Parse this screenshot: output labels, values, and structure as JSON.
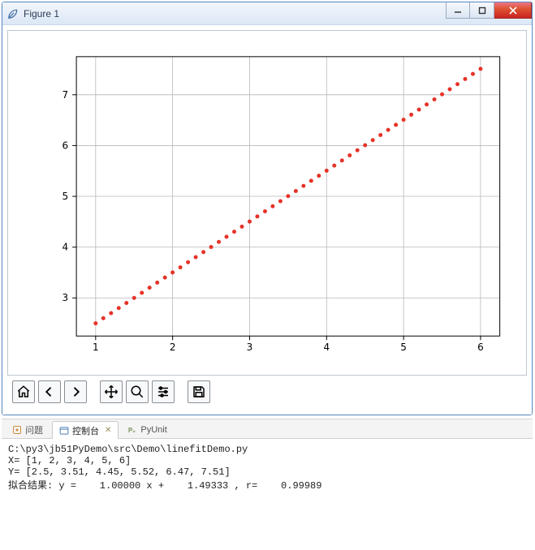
{
  "window": {
    "title": "Figure 1"
  },
  "chart": {
    "type": "scatter-line",
    "xlim": [
      0.75,
      6.25
    ],
    "ylim": [
      2.25,
      7.75
    ],
    "xticks": [
      1,
      2,
      3,
      4,
      5,
      6
    ],
    "yticks": [
      3,
      4,
      5,
      6,
      7
    ],
    "xtick_labels": [
      "1",
      "2",
      "3",
      "4",
      "5",
      "6"
    ],
    "ytick_labels": [
      "3",
      "4",
      "5",
      "6",
      "7"
    ],
    "tick_fontsize": 12,
    "grid": true,
    "grid_color": "#b8b8b8",
    "axis_color": "#000000",
    "background_color": "#ffffff",
    "series": {
      "x": [
        1,
        2,
        3,
        4,
        5,
        6
      ],
      "y": [
        2.5,
        3.51,
        4.45,
        5.52,
        6.47,
        7.51
      ],
      "line_style": "dotted",
      "marker": "dot",
      "marker_size": 2.5,
      "color": "#e63227",
      "num_dots": 50
    }
  },
  "toolbar": {
    "home": "Home",
    "back": "Back",
    "forward": "Forward",
    "pan": "Pan",
    "zoom": "Zoom",
    "configure": "Configure subplots",
    "save": "Save"
  },
  "console": {
    "tabs": {
      "problems": "问题",
      "console": "控制台",
      "pyunit": "PyUnit"
    },
    "active_tab": "console",
    "lines": [
      "C:\\py3\\jb51PyDemo\\src\\Demo\\linefitDemo.py",
      "X= [1, 2, 3, 4, 5, 6]",
      "Y= [2.5, 3.51, 4.45, 5.52, 6.47, 7.51]",
      "拟合结果: y =    1.00000 x +    1.49333 , r=    0.99989"
    ]
  }
}
